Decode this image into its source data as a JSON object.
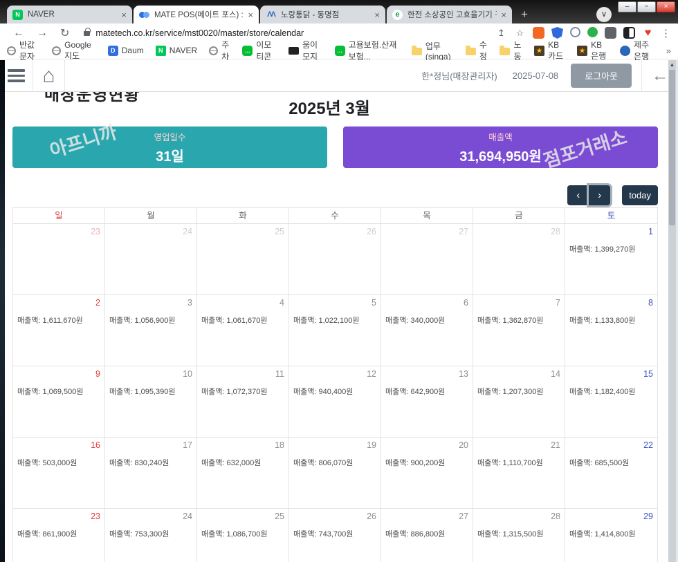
{
  "window": {
    "minimize": "–",
    "maximize": "▫",
    "close": "×"
  },
  "browser": {
    "tabs": [
      {
        "label": "NAVER",
        "close": "×"
      },
      {
        "label": "MATE POS(메이트 포스) :: 매장",
        "close": "×"
      },
      {
        "label": "노랑통닭 - 동명점",
        "close": "×"
      },
      {
        "label": "한전 소상공인 고효율기기 구마",
        "close": "×"
      }
    ],
    "new_tab": "+",
    "tab_chevron": "∨",
    "back": "←",
    "forward": "→",
    "refresh": "↻",
    "url": "matetech.co.kr/service/mst0020/master/store/calendar",
    "share": "↥",
    "star": "☆",
    "menu": "⋮",
    "extensions": [
      {
        "name": "orange-extension-icon",
        "cls": "ext-box ext-orange"
      },
      {
        "name": "shield-extension-icon",
        "cls": "ext-shield"
      },
      {
        "name": "globe-extension-icon",
        "cls": "ext-globe2"
      },
      {
        "name": "green-extension-icon",
        "cls": "ext-green"
      },
      {
        "name": "puzzle-extensions-icon",
        "cls": "ext-box ext-puzzle"
      },
      {
        "name": "contrast-extension-icon",
        "cls": "ext-box ext-bw"
      }
    ],
    "heart_icon": "♥",
    "bookmarks": [
      {
        "icon": "ic-globe",
        "label": "반값문자"
      },
      {
        "icon": "ic-globe",
        "label": "Google 지도"
      },
      {
        "icon": "ic-daum",
        "label": "Daum",
        "glyph": "D"
      },
      {
        "icon": "ic-naver",
        "label": "NAVER",
        "glyph": "N"
      },
      {
        "icon": "ic-globe",
        "label": "주차"
      },
      {
        "icon": "ic-bubble",
        "label": "이모티콘",
        "glyph": "…"
      },
      {
        "icon": "ic-black",
        "label": "움이모지"
      },
      {
        "icon": "ic-bubble",
        "label": "고용보험.산재보험...",
        "glyph": "…"
      },
      {
        "icon": "ic-folder",
        "label": "업무(singa)"
      },
      {
        "icon": "ic-folder",
        "label": "수정"
      },
      {
        "icon": "ic-folder",
        "label": "노동"
      },
      {
        "icon": "ic-kb",
        "label": "KB카드",
        "glyph": "★"
      },
      {
        "icon": "ic-kb",
        "label": "KB은행",
        "glyph": "★"
      },
      {
        "icon": "ic-jeju",
        "label": "제주은행"
      }
    ],
    "bookmarks_overflow": "»"
  },
  "app_header": {
    "user": "한*정님(매장관리자)",
    "date": "2025-07-08",
    "logout_label": "로그아웃",
    "back_arrow": "←",
    "home_icon": "⌂"
  },
  "page": {
    "clipped_title": "매장운영현황",
    "month_title": "2025년 3월",
    "cards": {
      "business_days": {
        "label": "영업일수",
        "value": "31일"
      },
      "sales_total": {
        "label": "매출액",
        "value": "31,694,950원"
      }
    },
    "watermarks": [
      "아프니까",
      "점포거래소"
    ],
    "nav": {
      "prev": "‹",
      "next": "›",
      "today": "today"
    },
    "accent_colors": {
      "teal": "#2aa6ae",
      "purple": "#7a4bd3",
      "navy": "#23384b"
    }
  },
  "calendar": {
    "day_headers": [
      {
        "label": "일",
        "cls": "h-sun"
      },
      {
        "label": "월",
        "cls": ""
      },
      {
        "label": "화",
        "cls": ""
      },
      {
        "label": "수",
        "cls": ""
      },
      {
        "label": "목",
        "cls": ""
      },
      {
        "label": "금",
        "cls": ""
      },
      {
        "label": "토",
        "cls": "h-sat"
      }
    ],
    "weeks": [
      [
        {
          "day": "23",
          "type": "prev-sun",
          "sales": ""
        },
        {
          "day": "24",
          "type": "prev",
          "sales": ""
        },
        {
          "day": "25",
          "type": "prev",
          "sales": ""
        },
        {
          "day": "26",
          "type": "prev",
          "sales": ""
        },
        {
          "day": "27",
          "type": "prev",
          "sales": ""
        },
        {
          "day": "28",
          "type": "prev",
          "sales": ""
        },
        {
          "day": "1",
          "type": "sat",
          "sales": "매출액: 1,399,270원"
        }
      ],
      [
        {
          "day": "2",
          "type": "sun",
          "sales": "매출액: 1,611,670원"
        },
        {
          "day": "3",
          "type": "weekday",
          "sales": "매출액: 1,056,900원"
        },
        {
          "day": "4",
          "type": "weekday",
          "sales": "매출액: 1,061,670원"
        },
        {
          "day": "5",
          "type": "weekday",
          "sales": "매출액: 1,022,100원"
        },
        {
          "day": "6",
          "type": "weekday",
          "sales": "매출액: 340,000원"
        },
        {
          "day": "7",
          "type": "weekday",
          "sales": "매출액: 1,362,870원"
        },
        {
          "day": "8",
          "type": "sat",
          "sales": "매출액: 1,133,800원"
        }
      ],
      [
        {
          "day": "9",
          "type": "sun",
          "sales": "매출액: 1,069,500원"
        },
        {
          "day": "10",
          "type": "weekday",
          "sales": "매출액: 1,095,390원"
        },
        {
          "day": "11",
          "type": "weekday",
          "sales": "매출액: 1,072,370원"
        },
        {
          "day": "12",
          "type": "weekday",
          "sales": "매출액: 940,400원"
        },
        {
          "day": "13",
          "type": "weekday",
          "sales": "매출액: 642,900원"
        },
        {
          "day": "14",
          "type": "weekday",
          "sales": "매출액: 1,207,300원"
        },
        {
          "day": "15",
          "type": "sat",
          "sales": "매출액: 1,182,400원"
        }
      ],
      [
        {
          "day": "16",
          "type": "sun",
          "sales": "매출액: 503,000원"
        },
        {
          "day": "17",
          "type": "weekday",
          "sales": "매출액: 830,240원"
        },
        {
          "day": "18",
          "type": "weekday",
          "sales": "매출액: 632,000원"
        },
        {
          "day": "19",
          "type": "weekday",
          "sales": "매출액: 806,070원"
        },
        {
          "day": "20",
          "type": "weekday",
          "sales": "매출액: 900,200원"
        },
        {
          "day": "21",
          "type": "weekday",
          "sales": "매출액: 1,110,700원"
        },
        {
          "day": "22",
          "type": "sat",
          "sales": "매출액: 685,500원"
        }
      ],
      [
        {
          "day": "23",
          "type": "sun",
          "sales": "매출액: 861,900원"
        },
        {
          "day": "24",
          "type": "weekday",
          "sales": "매출액: 753,300원"
        },
        {
          "day": "25",
          "type": "weekday",
          "sales": "매출액: 1,086,700원"
        },
        {
          "day": "26",
          "type": "weekday",
          "sales": "매출액: 743,700원"
        },
        {
          "day": "27",
          "type": "weekday",
          "sales": "매출액: 886,800원"
        },
        {
          "day": "28",
          "type": "weekday",
          "sales": "매출액: 1,315,500원"
        },
        {
          "day": "29",
          "type": "sat",
          "sales": "매출액: 1,414,800원"
        }
      ]
    ]
  }
}
